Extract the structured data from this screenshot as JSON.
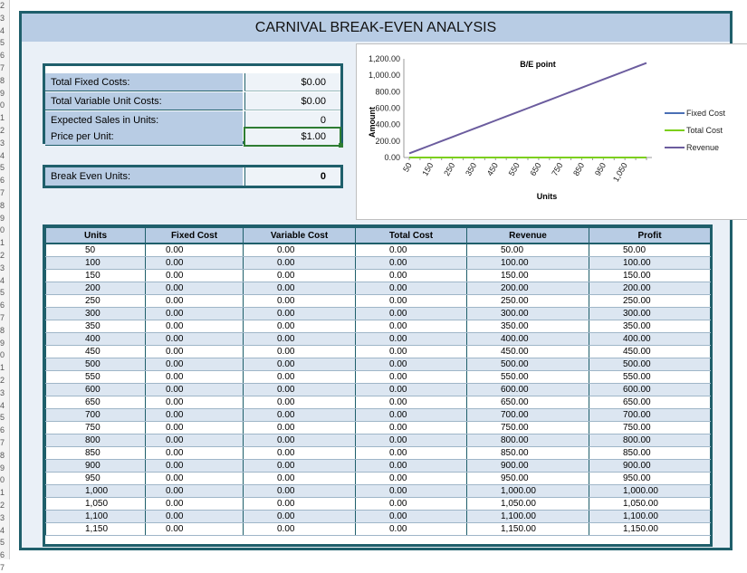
{
  "row_numbers": [
    "2",
    "3",
    "4",
    "5",
    "6",
    "7",
    "8",
    "9",
    "0",
    "1",
    "2",
    "3",
    "4",
    "5",
    "6",
    "7",
    "8",
    "9",
    "0",
    "1",
    "2",
    "3",
    "4",
    "5",
    "6",
    "7",
    "8",
    "9",
    "0",
    "1",
    "2",
    "3",
    "4",
    "5",
    "6",
    "7",
    "8",
    "9",
    "0",
    "1",
    "2",
    "3",
    "4",
    "5",
    "6",
    "7"
  ],
  "title": "CARNIVAL BREAK-EVEN ANALYSIS",
  "inputs": [
    {
      "label": "Total Fixed Costs:",
      "value": "$0.00"
    },
    {
      "label": "Total Variable Unit Costs:",
      "value": "$0.00"
    },
    {
      "label": "Expected Sales in Units:",
      "value": "0"
    },
    {
      "label": "Price per Unit:",
      "value": "$1.00"
    }
  ],
  "break_even": {
    "label": "Break Even Units:",
    "value": "0"
  },
  "chart_data": {
    "type": "line",
    "title": "B/E point",
    "xlabel": "Units",
    "ylabel": "Amount",
    "x": [
      50,
      100,
      150,
      200,
      250,
      300,
      350,
      400,
      450,
      500,
      550,
      600,
      650,
      700,
      750,
      800,
      850,
      900,
      950,
      1000,
      1050,
      1100,
      1150
    ],
    "x_tick_labels": [
      "50",
      "150",
      "250",
      "350",
      "450",
      "550",
      "650",
      "750",
      "850",
      "950",
      "1,050"
    ],
    "y_tick_labels": [
      "0.00",
      "200.00",
      "400.00",
      "600.00",
      "800.00",
      "1,000.00",
      "1,200.00"
    ],
    "ylim": [
      0,
      1200
    ],
    "series": [
      {
        "name": "Fixed Cost",
        "color": "#4a6fb5",
        "values": [
          0,
          0,
          0,
          0,
          0,
          0,
          0,
          0,
          0,
          0,
          0,
          0,
          0,
          0,
          0,
          0,
          0,
          0,
          0,
          0,
          0,
          0,
          0
        ]
      },
      {
        "name": "Total Cost",
        "color": "#7ccf1a",
        "values": [
          0,
          0,
          0,
          0,
          0,
          0,
          0,
          0,
          0,
          0,
          0,
          0,
          0,
          0,
          0,
          0,
          0,
          0,
          0,
          0,
          0,
          0,
          0
        ]
      },
      {
        "name": "Revenue",
        "color": "#6b5c9e",
        "values": [
          50,
          100,
          150,
          200,
          250,
          300,
          350,
          400,
          450,
          500,
          550,
          600,
          650,
          700,
          750,
          800,
          850,
          900,
          950,
          1000,
          1050,
          1100,
          1150
        ]
      }
    ],
    "legend_position": "right"
  },
  "table": {
    "headers": [
      "Units",
      "Fixed Cost",
      "Variable Cost",
      "Total Cost",
      "Revenue",
      "Profit"
    ],
    "rows": [
      [
        "50",
        "0.00",
        "0.00",
        "0.00",
        "50.00",
        "50.00"
      ],
      [
        "100",
        "0.00",
        "0.00",
        "0.00",
        "100.00",
        "100.00"
      ],
      [
        "150",
        "0.00",
        "0.00",
        "0.00",
        "150.00",
        "150.00"
      ],
      [
        "200",
        "0.00",
        "0.00",
        "0.00",
        "200.00",
        "200.00"
      ],
      [
        "250",
        "0.00",
        "0.00",
        "0.00",
        "250.00",
        "250.00"
      ],
      [
        "300",
        "0.00",
        "0.00",
        "0.00",
        "300.00",
        "300.00"
      ],
      [
        "350",
        "0.00",
        "0.00",
        "0.00",
        "350.00",
        "350.00"
      ],
      [
        "400",
        "0.00",
        "0.00",
        "0.00",
        "400.00",
        "400.00"
      ],
      [
        "450",
        "0.00",
        "0.00",
        "0.00",
        "450.00",
        "450.00"
      ],
      [
        "500",
        "0.00",
        "0.00",
        "0.00",
        "500.00",
        "500.00"
      ],
      [
        "550",
        "0.00",
        "0.00",
        "0.00",
        "550.00",
        "550.00"
      ],
      [
        "600",
        "0.00",
        "0.00",
        "0.00",
        "600.00",
        "600.00"
      ],
      [
        "650",
        "0.00",
        "0.00",
        "0.00",
        "650.00",
        "650.00"
      ],
      [
        "700",
        "0.00",
        "0.00",
        "0.00",
        "700.00",
        "700.00"
      ],
      [
        "750",
        "0.00",
        "0.00",
        "0.00",
        "750.00",
        "750.00"
      ],
      [
        "800",
        "0.00",
        "0.00",
        "0.00",
        "800.00",
        "800.00"
      ],
      [
        "850",
        "0.00",
        "0.00",
        "0.00",
        "850.00",
        "850.00"
      ],
      [
        "900",
        "0.00",
        "0.00",
        "0.00",
        "900.00",
        "900.00"
      ],
      [
        "950",
        "0.00",
        "0.00",
        "0.00",
        "950.00",
        "950.00"
      ],
      [
        "1,000",
        "0.00",
        "0.00",
        "0.00",
        "1,000.00",
        "1,000.00"
      ],
      [
        "1,050",
        "0.00",
        "0.00",
        "0.00",
        "1,050.00",
        "1,050.00"
      ],
      [
        "1,100",
        "0.00",
        "0.00",
        "0.00",
        "1,100.00",
        "1,100.00"
      ],
      [
        "1,150",
        "0.00",
        "0.00",
        "0.00",
        "1,150.00",
        "1,150.00"
      ]
    ]
  }
}
